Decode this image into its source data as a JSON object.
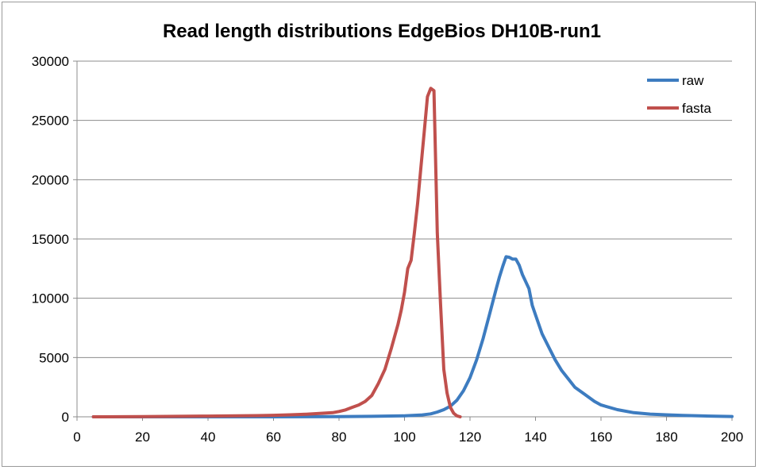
{
  "chart_data": {
    "type": "line",
    "title": "Read length distributions EdgeBios DH10B-run1",
    "xlabel": "",
    "ylabel": "",
    "xlim": [
      0,
      200
    ],
    "ylim": [
      0,
      30000
    ],
    "x_ticks": [
      "0",
      "20",
      "40",
      "60",
      "80",
      "100",
      "120",
      "140",
      "160",
      "180",
      "200"
    ],
    "y_ticks": [
      "0",
      "5000",
      "10000",
      "15000",
      "20000",
      "25000",
      "30000"
    ],
    "grid": true,
    "legend_position": "top-right",
    "series": [
      {
        "name": "raw",
        "color": "#3d7cc0",
        "points": [
          [
            5,
            0
          ],
          [
            20,
            0
          ],
          [
            40,
            0
          ],
          [
            60,
            0
          ],
          [
            80,
            20
          ],
          [
            90,
            40
          ],
          [
            100,
            80
          ],
          [
            105,
            150
          ],
          [
            108,
            250
          ],
          [
            110,
            400
          ],
          [
            112,
            600
          ],
          [
            114,
            900
          ],
          [
            116,
            1400
          ],
          [
            118,
            2200
          ],
          [
            120,
            3300
          ],
          [
            122,
            4800
          ],
          [
            124,
            6600
          ],
          [
            126,
            8700
          ],
          [
            128,
            10800
          ],
          [
            129,
            11800
          ],
          [
            130,
            12700
          ],
          [
            131,
            13500
          ],
          [
            132,
            13450
          ],
          [
            133,
            13300
          ],
          [
            134,
            13300
          ],
          [
            135,
            12800
          ],
          [
            136,
            12000
          ],
          [
            138,
            10800
          ],
          [
            139,
            9400
          ],
          [
            140,
            8600
          ],
          [
            142,
            7000
          ],
          [
            144,
            5900
          ],
          [
            146,
            4800
          ],
          [
            148,
            3900
          ],
          [
            150,
            3200
          ],
          [
            152,
            2500
          ],
          [
            155,
            1900
          ],
          [
            158,
            1300
          ],
          [
            160,
            1000
          ],
          [
            165,
            600
          ],
          [
            170,
            350
          ],
          [
            175,
            230
          ],
          [
            180,
            170
          ],
          [
            185,
            120
          ],
          [
            190,
            80
          ],
          [
            195,
            50
          ],
          [
            200,
            30
          ]
        ]
      },
      {
        "name": "fasta",
        "color": "#c0504d",
        "points": [
          [
            5,
            0
          ],
          [
            20,
            20
          ],
          [
            40,
            60
          ],
          [
            55,
            100
          ],
          [
            60,
            130
          ],
          [
            65,
            170
          ],
          [
            70,
            220
          ],
          [
            75,
            300
          ],
          [
            78,
            350
          ],
          [
            80,
            450
          ],
          [
            82,
            580
          ],
          [
            84,
            800
          ],
          [
            86,
            1000
          ],
          [
            88,
            1300
          ],
          [
            90,
            1800
          ],
          [
            92,
            2800
          ],
          [
            94,
            4000
          ],
          [
            96,
            5800
          ],
          [
            98,
            7800
          ],
          [
            99,
            9000
          ],
          [
            100,
            10500
          ],
          [
            101,
            12500
          ],
          [
            102,
            13200
          ],
          [
            103,
            15500
          ],
          [
            104,
            18000
          ],
          [
            105,
            21000
          ],
          [
            106,
            24000
          ],
          [
            107,
            27000
          ],
          [
            108,
            27700
          ],
          [
            109,
            27500
          ],
          [
            110,
            15500
          ],
          [
            111,
            9500
          ],
          [
            112,
            4000
          ],
          [
            113,
            2000
          ],
          [
            114,
            800
          ],
          [
            115,
            300
          ],
          [
            116,
            80
          ],
          [
            117,
            0
          ]
        ]
      }
    ]
  }
}
